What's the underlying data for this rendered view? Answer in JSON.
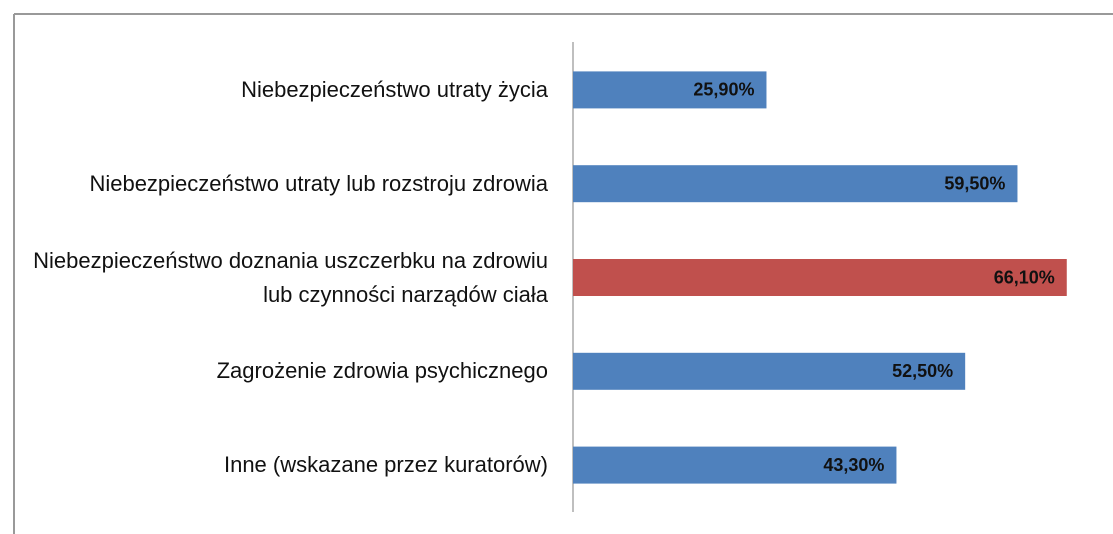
{
  "chart_data": {
    "type": "hbar",
    "categories": [
      "Niebezpieczeństwo utraty życia",
      "Niebezpieczeństwo utraty lub rozstroju zdrowia",
      "Niebezpieczeństwo doznania uszczerbku na zdrowiu lub czynności narządów ciała",
      "Zagrożenie zdrowia psychicznego",
      "Inne (wskazane przez kuratorów)"
    ],
    "values": [
      25.9,
      59.5,
      66.1,
      52.5,
      43.3
    ],
    "value_labels": [
      "25,90%",
      "59,50%",
      "66,10%",
      "52,50%",
      "43,30%"
    ],
    "colors": [
      "#4f81bd",
      "#4f81bd",
      "#c0504d",
      "#4f81bd",
      "#4f81bd"
    ]
  }
}
